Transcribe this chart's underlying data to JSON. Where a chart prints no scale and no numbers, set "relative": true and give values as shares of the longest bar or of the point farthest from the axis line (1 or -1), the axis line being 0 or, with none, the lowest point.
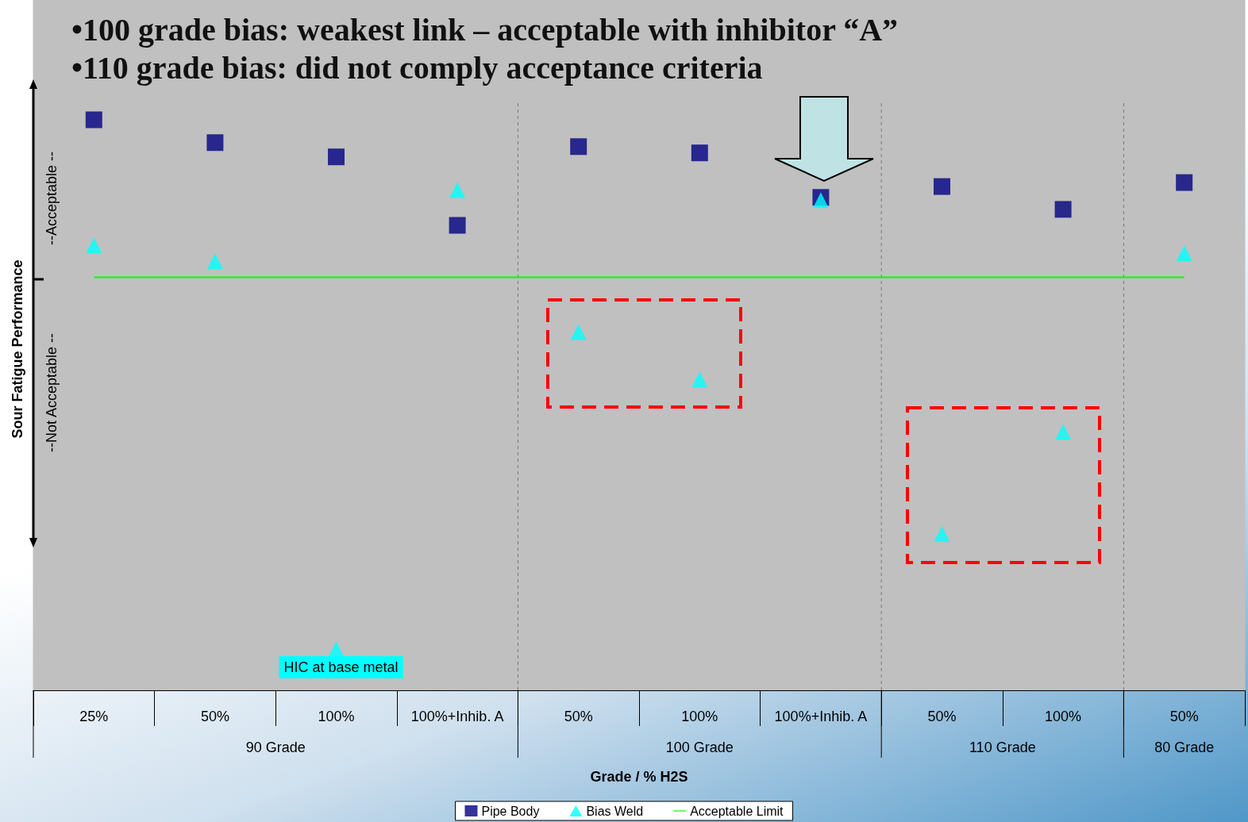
{
  "chart_data": {
    "type": "scatter",
    "title": "•100 grade bias: weakest link – acceptable with inhibitor “A”",
    "subtitle": "•110 grade bias: did not comply acceptance criteria",
    "xlabel": "Grade / % H2S",
    "ylabel": "Sour Fatigue Performance",
    "relative": true,
    "legend": "bottom",
    "categories": [
      "25%",
      "50%",
      "100%",
      "100%+Inhib. A",
      "50%",
      "100%",
      "100%+Inhib. A",
      "50%",
      "100%",
      "50%"
    ],
    "series": [
      {
        "name": "Pipe Body",
        "marker": "square",
        "color": "#000080",
        "values": [
          1,
          0.96,
          0.935,
          0.815,
          0.953,
          0.942,
          0.864,
          0.883,
          0.843,
          0.89
        ]
      },
      {
        "name": "Bias Weld",
        "marker": "triangle",
        "color": "#00ffff",
        "values": [
          0.78,
          0.752,
          0.072,
          0.877,
          0.628,
          0.545,
          0.859,
          0.274,
          0.453,
          0.766
        ]
      },
      {
        "name": "Acceptable Limit",
        "type": "line",
        "marker": "none",
        "color": "#00ff00",
        "values": [
          0.724,
          0.724,
          0.724,
          0.724,
          0.724,
          0.724,
          0.724,
          0.724,
          0.724,
          0.724
        ]
      }
    ],
    "annotations": [
      "--Acceptable --",
      "--Not Acceptable --",
      "HIC at base metal",
      "90 Grade",
      "100 Grade",
      "110 Grade",
      "80 Grade"
    ]
  }
}
